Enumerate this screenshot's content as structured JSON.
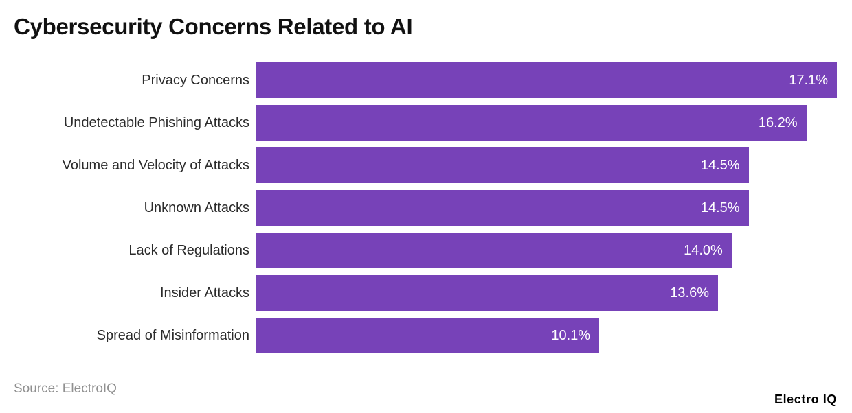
{
  "page": {
    "title": "Cybersecurity Concerns Related to AI",
    "source_text": "Source: ElectroIQ",
    "brand_wordmark": "Electro IQ"
  },
  "chart_data": {
    "type": "bar",
    "orientation": "horizontal",
    "title": "Cybersecurity Concerns Related to AI",
    "categories": [
      "Privacy Concerns",
      "Undetectable Phishing Attacks",
      "Volume and Velocity of Attacks",
      "Unknown Attacks",
      "Lack of Regulations",
      "Insider Attacks",
      "Spread of Misinformation"
    ],
    "values": [
      17.1,
      16.2,
      14.5,
      14.5,
      14.0,
      13.6,
      10.1
    ],
    "value_labels": [
      "17.1%",
      "16.2%",
      "14.5%",
      "14.5%",
      "14.0%",
      "13.6%",
      "10.1%"
    ],
    "xlabel": "",
    "ylabel": "",
    "xlim": [
      0,
      17.1
    ],
    "grid": false,
    "legend": false,
    "sort_order": "descending",
    "bar_color": "#7742b8",
    "value_label_color": "#ffffff",
    "category_label_color": "#2b2b2b"
  }
}
